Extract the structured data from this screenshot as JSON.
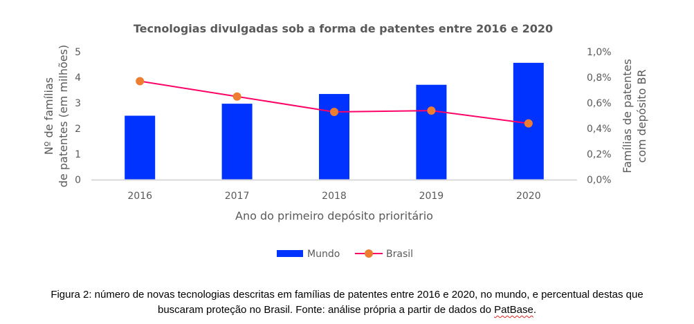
{
  "chart_data": {
    "type": "bar+line",
    "title": "Tecnologias divulgadas sob a forma de patentes entre 2016 e 2020",
    "xlabel": "Ano do primeiro depósito prioritário",
    "ylabel_left": [
      "Nº de famílias",
      "de patentes (em milhões)"
    ],
    "ylabel_right": [
      "Famílias de patentes",
      "com depósito BR"
    ],
    "categories": [
      "2016",
      "2017",
      "2018",
      "2019",
      "2020"
    ],
    "ylim_left": [
      0,
      5
    ],
    "yticks_left": [
      "0",
      "1",
      "2",
      "3",
      "4",
      "5"
    ],
    "ylim_right": [
      0,
      1.0
    ],
    "yticks_right": [
      "0,0%",
      "0,2%",
      "0,4%",
      "0,6%",
      "0,8%",
      "1,0%"
    ],
    "grid": false,
    "legend_position": "bottom",
    "series": [
      {
        "name": "Mundo",
        "type": "bar",
        "axis": "left",
        "color": "#0033FF",
        "values": [
          2.5,
          2.97,
          3.35,
          3.71,
          4.57
        ]
      },
      {
        "name": "Brasil",
        "type": "line",
        "axis": "right",
        "color": "#FF0066",
        "marker_color": "#ED7D31",
        "values": [
          0.77,
          0.65,
          0.53,
          0.54,
          0.44
        ],
        "unit": "%"
      }
    ]
  },
  "caption": {
    "line1": "Figura 2: número de novas tecnologias descritas em famílias de patentes entre 2016 e 2020, no mundo, e percentual destas que",
    "line2_before": "buscaram proteção no Brasil. Fonte: análise própria a partir de dados do ",
    "line2_flagged": "PatBase",
    "line2_after": "."
  }
}
